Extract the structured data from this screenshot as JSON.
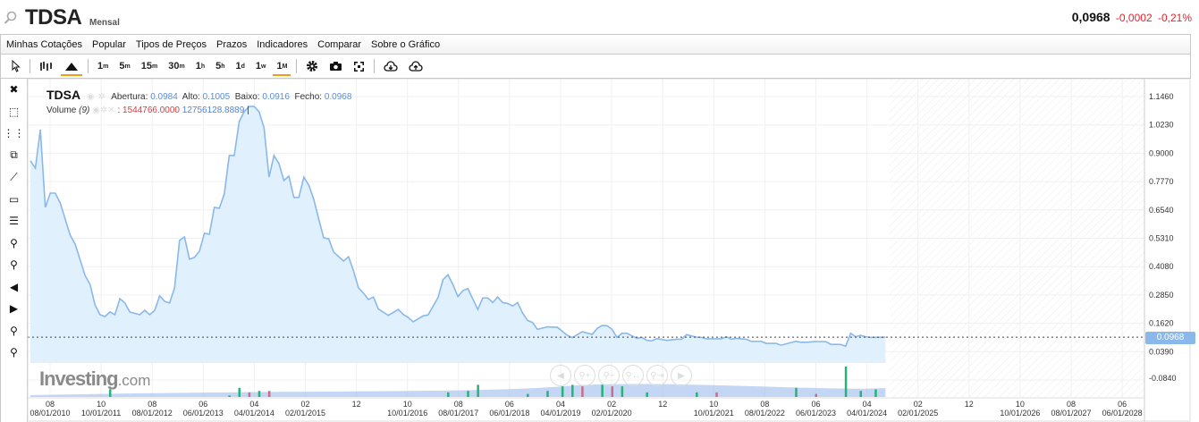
{
  "header": {
    "symbol": "TDSA",
    "interval": "Mensal",
    "last": "0,0968",
    "change": "-0,0002",
    "change_pct": "-0,21%"
  },
  "menu": [
    "Minhas Cotações",
    "Popular",
    "Tipos de Preços",
    "Prazos",
    "Indicadores",
    "Comparar",
    "Sobre o Gráfico"
  ],
  "toolbar": {
    "chart_types": [
      {
        "icon": "cursor-icon"
      },
      {
        "icon": "bars-icon"
      },
      {
        "icon": "area-chart-icon",
        "selected": true
      }
    ],
    "periods": [
      {
        "n": "1",
        "u": "m"
      },
      {
        "n": "5",
        "u": "m"
      },
      {
        "n": "15",
        "u": "m"
      },
      {
        "n": "30",
        "u": "m"
      },
      {
        "n": "1",
        "u": "h"
      },
      {
        "n": "5",
        "u": "h"
      },
      {
        "n": "1",
        "u": "d"
      },
      {
        "n": "1",
        "u": "w"
      },
      {
        "n": "1",
        "u": "M",
        "selected": true
      }
    ],
    "actions": [
      "gear-icon",
      "camera-icon",
      "fullscreen-icon"
    ],
    "cloud": [
      "cloud-download-icon",
      "cloud-upload-icon"
    ]
  },
  "left_tools": [
    "close-icon",
    "delete-drawing-icon",
    "remove-indicators-icon",
    "layers-icon",
    "trend-line-icon",
    "rectangle-icon",
    "fibonacci-icon",
    "zoom-in-icon",
    "zoom-out-icon",
    "scroll-left-icon",
    "scroll-right-icon",
    "zoom-in-x-icon",
    "zoom-out-x-icon"
  ],
  "legend": {
    "symbol": "TDSA",
    "open_label": "Abertura:",
    "open": "0.0984",
    "high_label": "Alto:",
    "high": "0.1005",
    "low_label": "Baixo:",
    "low": "0.0916",
    "close_label": "Fecho:",
    "close": "0.0968",
    "volume_label": "Volume",
    "volume_period": "(9)",
    "volume_value": "1544766.0000",
    "volume_ma": "12756128.8889"
  },
  "logo": {
    "main": "Investing",
    "suffix": ".com"
  },
  "colors": {
    "line": "#8ab8ea",
    "area": "#e0f0fd",
    "volume_up": "#26b37a",
    "volume_down": "#c96d8a",
    "volume_ma": "#7da7e8",
    "accent": "#f39c12",
    "negative": "#e8202a"
  },
  "chart_data": {
    "type": "area",
    "y_ticks": [
      "1.1460",
      "1.0230",
      "0.9000",
      "0.7770",
      "0.6540",
      "0.5310",
      "0.4080",
      "0.2850",
      "0.1620",
      "0.0390",
      "-0.0840"
    ],
    "ylim": [
      0.039,
      1.146
    ],
    "last_price_label": "0.0968",
    "x_ticks": [
      {
        "top": "08",
        "bottom": "08/01/2010"
      },
      {
        "top": "10",
        "bottom": "10/01/2011"
      },
      {
        "top": "08",
        "bottom": "08/01/2012"
      },
      {
        "top": "06",
        "bottom": "06/01/2013"
      },
      {
        "top": "04",
        "bottom": "04/01/2014"
      },
      {
        "top": "02",
        "bottom": "02/01/2015"
      },
      {
        "top": "12",
        "bottom": ""
      },
      {
        "top": "10",
        "bottom": "10/01/2016"
      },
      {
        "top": "08",
        "bottom": "08/01/2017"
      },
      {
        "top": "06",
        "bottom": "06/01/2018"
      },
      {
        "top": "04",
        "bottom": "04/01/2019"
      },
      {
        "top": "02",
        "bottom": "02/01/2020"
      },
      {
        "top": "12",
        "bottom": ""
      },
      {
        "top": "10",
        "bottom": "10/01/2021"
      },
      {
        "top": "08",
        "bottom": "08/01/2022"
      },
      {
        "top": "06",
        "bottom": "06/01/2023"
      },
      {
        "top": "04",
        "bottom": "04/01/2024"
      },
      {
        "top": "02",
        "bottom": "02/01/2025"
      },
      {
        "top": "12",
        "bottom": ""
      },
      {
        "top": "10",
        "bottom": "10/01/2026"
      },
      {
        "top": "08",
        "bottom": "08/01/2027"
      },
      {
        "top": "06",
        "bottom": "06/01/2028"
      }
    ],
    "series": [
      [
        "2010-04",
        0.866
      ],
      [
        "2010-05",
        0.834
      ],
      [
        "2010-06",
        1.002
      ],
      [
        "2010-07",
        0.663
      ],
      [
        "2010-08",
        0.725
      ],
      [
        "2010-09",
        0.725
      ],
      [
        "2010-10",
        0.682
      ],
      [
        "2010-12",
        0.542
      ],
      [
        "2011-01",
        0.503
      ],
      [
        "2011-03",
        0.366
      ],
      [
        "2011-04",
        0.327
      ],
      [
        "2011-05",
        0.238
      ],
      [
        "2011-06",
        0.195
      ],
      [
        "2011-07",
        0.187
      ],
      [
        "2011-08",
        0.207
      ],
      [
        "2011-09",
        0.195
      ],
      [
        "2011-10",
        0.265
      ],
      [
        "2011-11",
        0.246
      ],
      [
        "2011-12",
        0.207
      ],
      [
        "2012-02",
        0.195
      ],
      [
        "2012-03",
        0.214
      ],
      [
        "2012-04",
        0.195
      ],
      [
        "2012-05",
        0.214
      ],
      [
        "2012-06",
        0.277
      ],
      [
        "2012-07",
        0.253
      ],
      [
        "2012-08",
        0.246
      ],
      [
        "2012-09",
        0.312
      ],
      [
        "2012-10",
        0.519
      ],
      [
        "2012-11",
        0.534
      ],
      [
        "2012-12",
        0.437
      ],
      [
        "2013-01",
        0.445
      ],
      [
        "2013-02",
        0.472
      ],
      [
        "2013-03",
        0.55
      ],
      [
        "2013-04",
        0.546
      ],
      [
        "2013-05",
        0.663
      ],
      [
        "2013-06",
        0.659
      ],
      [
        "2013-07",
        0.721
      ],
      [
        "2013-08",
        0.889
      ],
      [
        "2013-09",
        0.889
      ],
      [
        "2013-10",
        1.037
      ],
      [
        "2013-11",
        1.08
      ],
      [
        "2013-12",
        1.103
      ],
      [
        "2014-01",
        1.103
      ],
      [
        "2014-02",
        1.08
      ],
      [
        "2014-03",
        1.01
      ],
      [
        "2014-04",
        0.795
      ],
      [
        "2014-05",
        0.889
      ],
      [
        "2014-06",
        0.854
      ],
      [
        "2014-07",
        0.78
      ],
      [
        "2014-08",
        0.799
      ],
      [
        "2014-09",
        0.706
      ],
      [
        "2014-10",
        0.706
      ],
      [
        "2014-11",
        0.795
      ],
      [
        "2014-12",
        0.76
      ],
      [
        "2015-01",
        0.698
      ],
      [
        "2015-02",
        0.612
      ],
      [
        "2015-03",
        0.53
      ],
      [
        "2015-04",
        0.526
      ],
      [
        "2015-05",
        0.468
      ],
      [
        "2015-07",
        0.429
      ],
      [
        "2015-08",
        0.448
      ],
      [
        "2015-09",
        0.386
      ],
      [
        "2015-10",
        0.312
      ],
      [
        "2015-11",
        0.289
      ],
      [
        "2015-12",
        0.261
      ],
      [
        "2016-01",
        0.272
      ],
      [
        "2016-02",
        0.22
      ],
      [
        "2016-04",
        0.192
      ],
      [
        "2016-06",
        0.218
      ],
      [
        "2016-07",
        0.196
      ],
      [
        "2016-08",
        0.183
      ],
      [
        "2016-09",
        0.164
      ],
      [
        "2016-11",
        0.19
      ],
      [
        "2016-12",
        0.194
      ],
      [
        "2017-02",
        0.27
      ],
      [
        "2017-03",
        0.348
      ],
      [
        "2017-04",
        0.369
      ],
      [
        "2017-05",
        0.326
      ],
      [
        "2017-06",
        0.274
      ],
      [
        "2017-07",
        0.3
      ],
      [
        "2017-08",
        0.309
      ],
      [
        "2017-10",
        0.218
      ],
      [
        "2017-11",
        0.268
      ],
      [
        "2017-12",
        0.268
      ],
      [
        "2018-01",
        0.248
      ],
      [
        "2018-02",
        0.272
      ],
      [
        "2018-03",
        0.248
      ],
      [
        "2018-04",
        0.244
      ],
      [
        "2018-05",
        0.233
      ],
      [
        "2018-06",
        0.248
      ],
      [
        "2018-07",
        0.203
      ],
      [
        "2018-08",
        0.17
      ],
      [
        "2018-09",
        0.161
      ],
      [
        "2018-10",
        0.131
      ],
      [
        "2018-12",
        0.142
      ],
      [
        "2019-02",
        0.14
      ],
      [
        "2019-04",
        0.105
      ],
      [
        "2019-05",
        0.095
      ],
      [
        "2019-07",
        0.121
      ],
      [
        "2019-09",
        0.109
      ],
      [
        "2019-10",
        0.135
      ],
      [
        "2019-11",
        0.148
      ],
      [
        "2019-12",
        0.147
      ],
      [
        "2020-01",
        0.131
      ],
      [
        "2020-02",
        0.096
      ],
      [
        "2020-03",
        0.114
      ],
      [
        "2020-04",
        0.114
      ],
      [
        "2020-05",
        0.103
      ],
      [
        "2020-06",
        0.092
      ],
      [
        "2020-07",
        0.096
      ],
      [
        "2020-08",
        0.083
      ],
      [
        "2020-09",
        0.081
      ],
      [
        "2020-10",
        0.091
      ],
      [
        "2020-12",
        0.083
      ],
      [
        "2021-02",
        0.088
      ],
      [
        "2021-03",
        0.088
      ],
      [
        "2021-04",
        0.108
      ],
      [
        "2021-06",
        0.097
      ],
      [
        "2021-07",
        0.096
      ],
      [
        "2021-08",
        0.09
      ],
      [
        "2021-11",
        0.09
      ],
      [
        "2021-12",
        0.099
      ],
      [
        "2022-01",
        0.088
      ],
      [
        "2022-02",
        0.092
      ],
      [
        "2022-04",
        0.088
      ],
      [
        "2022-05",
        0.079
      ],
      [
        "2022-07",
        0.079
      ],
      [
        "2022-08",
        0.07
      ],
      [
        "2022-10",
        0.07
      ],
      [
        "2022-11",
        0.062
      ],
      [
        "2023-02",
        0.079
      ],
      [
        "2023-03",
        0.075
      ],
      [
        "2023-04",
        0.075
      ],
      [
        "2023-06",
        0.078
      ],
      [
        "2023-08",
        0.078
      ],
      [
        "2023-09",
        0.066
      ],
      [
        "2023-11",
        0.065
      ],
      [
        "2023-12",
        0.058
      ],
      [
        "2024-01",
        0.114
      ],
      [
        "2024-02",
        0.099
      ],
      [
        "2024-03",
        0.105
      ],
      [
        "2024-04",
        0.099
      ],
      [
        "2024-05",
        0.096
      ],
      [
        "2024-08",
        0.0968
      ]
    ],
    "volume": [
      [
        "2011-08",
        0.25,
        "up"
      ],
      [
        "2013-08",
        0.05,
        "up"
      ],
      [
        "2013-10",
        0.3,
        "up"
      ],
      [
        "2013-12",
        0.15,
        "down"
      ],
      [
        "2014-02",
        0.2,
        "up"
      ],
      [
        "2014-04",
        0.2,
        "down"
      ],
      [
        "2017-04",
        0.15,
        "up"
      ],
      [
        "2017-08",
        0.2,
        "up"
      ],
      [
        "2017-10",
        0.4,
        "up"
      ],
      [
        "2018-08",
        0.1,
        "up"
      ],
      [
        "2018-12",
        0.2,
        "up"
      ],
      [
        "2019-03",
        0.35,
        "up"
      ],
      [
        "2019-05",
        0.4,
        "up"
      ],
      [
        "2019-07",
        0.35,
        "down"
      ],
      [
        "2019-11",
        0.4,
        "up"
      ],
      [
        "2020-01",
        0.35,
        "down"
      ],
      [
        "2020-03",
        0.35,
        "up"
      ],
      [
        "2020-08",
        0.15,
        "up"
      ],
      [
        "2021-06",
        0.15,
        "up"
      ],
      [
        "2021-10",
        0.15,
        "down"
      ],
      [
        "2023-02",
        0.3,
        "up"
      ],
      [
        "2023-06",
        0.1,
        "down"
      ],
      [
        "2023-12",
        1.0,
        "up"
      ],
      [
        "2024-03",
        0.2,
        "up"
      ],
      [
        "2024-06",
        0.25,
        "up"
      ]
    ]
  }
}
